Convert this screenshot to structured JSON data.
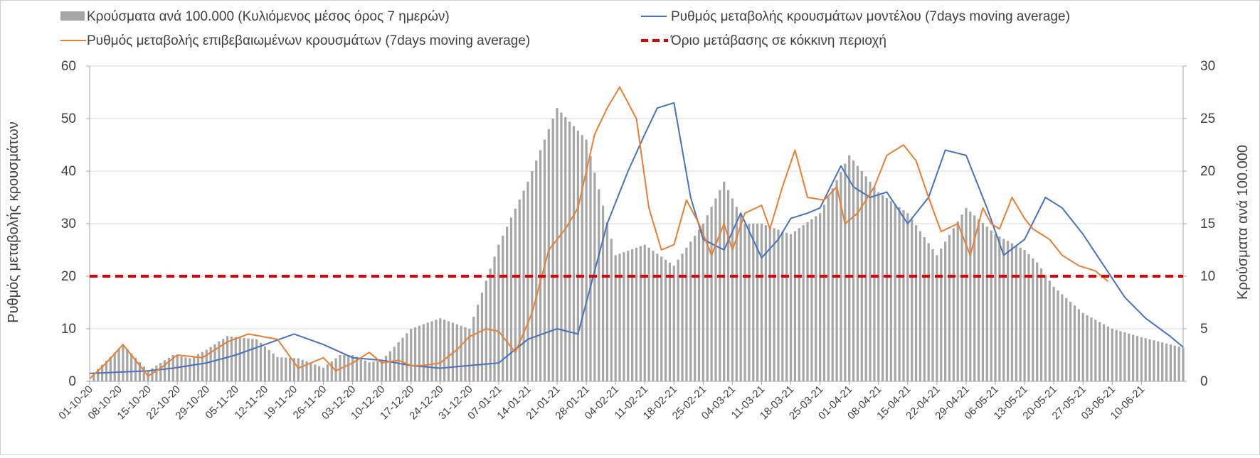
{
  "chart_data": {
    "type": "bar+line",
    "title": "",
    "legend": {
      "placement": "top",
      "entries": [
        {
          "key": "bars",
          "label": "Κρούσματα ανά 100.000 (Κυλιόμενος μέσος όρος 7 ημερών)",
          "color": "#a6a6a6"
        },
        {
          "key": "model",
          "label": "Ρυθμός μεταβολής κρουσμάτων μοντέλου (7days moving average)",
          "color": "#4472c4"
        },
        {
          "key": "confirmed",
          "label": "Ρυθμός μεταβολής επιβεβαιωμένων κρουσμάτων (7days moving average)",
          "color": "#ed7d31"
        },
        {
          "key": "threshold",
          "label": "Όριο μετάβασης σε κόκκινη περιοχή",
          "color": "#e00000"
        }
      ]
    },
    "y_left": {
      "label": "Ρυθμός μεταβολής κρουσμάτων",
      "range": [
        0,
        60
      ],
      "ticks": [
        "0",
        "10",
        "20",
        "30",
        "40",
        "50",
        "60"
      ]
    },
    "y_right": {
      "label": "Κρούσματα ανά 100.000",
      "range": [
        0,
        30
      ],
      "ticks": [
        "0",
        "5",
        "10",
        "15",
        "20",
        "25",
        "30"
      ]
    },
    "x_labels": [
      "01-10-20",
      "08-10-20",
      "15-10-20",
      "22-10-20",
      "29-10-20",
      "05-11-20",
      "12-11-20",
      "19-11-20",
      "26-11-20",
      "03-12-20",
      "10-12-20",
      "17-12-20",
      "24-12-20",
      "31-12-20",
      "07-01-21",
      "14-01-21",
      "21-01-21",
      "28-01-21",
      "04-02-21",
      "11-02-21",
      "18-02-21",
      "25-02-21",
      "04-03-21",
      "11-03-21",
      "18-03-21",
      "25-03-21",
      "01-04-21",
      "08-04-21",
      "15-04-21",
      "22-04-21",
      "29-04-21",
      "06-05-21",
      "13-05-21",
      "20-05-21",
      "27-05-21",
      "03-06-21",
      "10-06-21"
    ],
    "x_range_days": [
      0,
      262
    ],
    "threshold": 20,
    "bars_per_100k": {
      "day": [
        1,
        8,
        14,
        20,
        24,
        28,
        33,
        40,
        45,
        50,
        56,
        60,
        63,
        67,
        70,
        77,
        84,
        91,
        98,
        105,
        112,
        119,
        126,
        133,
        140,
        147,
        152,
        157,
        161,
        168,
        175,
        182,
        189,
        196,
        203,
        210,
        217,
        224,
        227,
        231,
        238,
        245,
        252,
        259,
        262
      ],
      "value": [
        0.8,
        3.5,
        1.0,
        2.5,
        2.2,
        3.0,
        4.3,
        4.0,
        2.3,
        2.2,
        1.3,
        2.5,
        2.5,
        1.8,
        2.0,
        5.0,
        6.0,
        5.0,
        13.0,
        19.0,
        26.0,
        23.0,
        12.0,
        13.0,
        11.0,
        15.0,
        19.0,
        15.0,
        15.0,
        14.0,
        16.0,
        21.5,
        18.0,
        16.0,
        12.0,
        16.5,
        14.0,
        12.5,
        11.3,
        9.0,
        6.5,
        5.0,
        4.2,
        3.5,
        3.2
      ]
    },
    "series": [
      {
        "name": "Ρυθμός μεταβολής κρουσμάτων μοντέλου (7days moving average)",
        "day": [
          0,
          14,
          20,
          28,
          35,
          42,
          49,
          56,
          63,
          70,
          77,
          84,
          91,
          98,
          105,
          112,
          117,
          124,
          129,
          133,
          136,
          140,
          144,
          147,
          152,
          156,
          161,
          165,
          168,
          172,
          175,
          180,
          183,
          187,
          191,
          196,
          201,
          205,
          210,
          215,
          219,
          224,
          229,
          233,
          238,
          243,
          248,
          253,
          259,
          262
        ],
        "value": [
          1.5,
          2.0,
          2.5,
          3.5,
          5.0,
          7.0,
          9.0,
          7.0,
          4.5,
          4.0,
          3.0,
          2.5,
          3.0,
          3.5,
          8.0,
          10.0,
          9.0,
          30.0,
          40.0,
          47.0,
          52.0,
          53.0,
          35.0,
          27.0,
          25.0,
          32.0,
          23.5,
          27.0,
          31.0,
          32.0,
          33.0,
          41.0,
          37.0,
          35.0,
          36.0,
          30.0,
          35.0,
          44.0,
          43.0,
          33.0,
          24.0,
          27.0,
          35.0,
          33.0,
          28.0,
          22.0,
          16.0,
          12.0,
          8.5,
          6.5
        ]
      },
      {
        "name": "Ρυθμός μεταβολής επιβεβαιωμένων κρουσμάτων (7days moving average)",
        "day": [
          0,
          4,
          8,
          11,
          14,
          17,
          21,
          27,
          33,
          38,
          45,
          50,
          56,
          59,
          63,
          67,
          70,
          74,
          77,
          80,
          84,
          88,
          91,
          95,
          98,
          102,
          106,
          110,
          114,
          117,
          121,
          124,
          127,
          131,
          134,
          137,
          140,
          143,
          146,
          149,
          152,
          154,
          157,
          161,
          163,
          166,
          169,
          172,
          176,
          179,
          181,
          184,
          188,
          191,
          195,
          198,
          201,
          204,
          208,
          211,
          214,
          216,
          218,
          221,
          224,
          226,
          230,
          233,
          237,
          241,
          244
        ],
        "value": [
          0.5,
          3.5,
          7.0,
          4.0,
          1.0,
          2.5,
          5.0,
          4.5,
          7.5,
          9.0,
          8.0,
          2.5,
          4.5,
          2.0,
          3.5,
          5.5,
          3.5,
          4.0,
          3.0,
          3.0,
          3.5,
          6.0,
          8.5,
          10.0,
          9.5,
          5.5,
          13.0,
          25.0,
          29.0,
          33.0,
          47.0,
          52.0,
          56.0,
          50.0,
          33.0,
          25.0,
          26.0,
          34.5,
          30.0,
          24.0,
          30.0,
          25.0,
          32.0,
          33.5,
          29.0,
          37.0,
          44.0,
          35.0,
          34.5,
          37.0,
          30.0,
          32.0,
          37.0,
          43.0,
          45.0,
          42.0,
          35.0,
          28.5,
          30.0,
          24.0,
          33.0,
          30.0,
          29.0,
          35.0,
          31.0,
          29.0,
          27.0,
          24.0,
          22.0,
          21.0,
          19.0
        ]
      }
    ]
  }
}
